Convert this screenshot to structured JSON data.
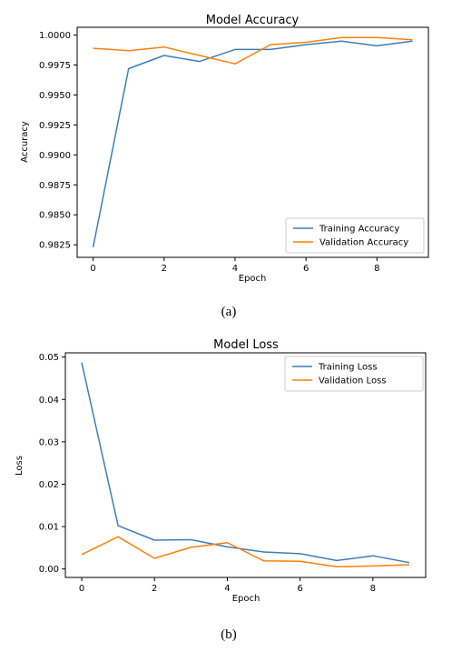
{
  "colors": {
    "training": "#3b7fb8",
    "validation": "#ff7f0e"
  },
  "chart_data": [
    {
      "type": "line",
      "title": "Model Accuracy",
      "xlabel": "Epoch",
      "ylabel": "Accuracy",
      "caption": "(a)",
      "x": [
        0,
        1,
        2,
        3,
        4,
        5,
        6,
        7,
        8,
        9
      ],
      "xlim": [
        -0.45,
        9.45
      ],
      "ylim": [
        0.98145,
        1.00065
      ],
      "xticks": [
        0,
        2,
        4,
        6,
        8
      ],
      "yticks": [
        0.9825,
        0.985,
        0.9875,
        0.99,
        0.9925,
        0.995,
        0.9975,
        1.0
      ],
      "ytick_labels": [
        "0.9825",
        "0.9850",
        "0.9875",
        "0.9900",
        "0.9925",
        "0.9950",
        "0.9975",
        "1.0000"
      ],
      "legend_position": "lower-right",
      "series": [
        {
          "name": "Training Accuracy",
          "values": [
            0.9823,
            0.9972,
            0.9983,
            0.9978,
            0.9988,
            0.9988,
            0.9992,
            0.9995,
            0.9991,
            0.9995
          ]
        },
        {
          "name": "Validation Accuracy",
          "values": [
            0.9989,
            0.9987,
            0.999,
            0.9983,
            0.9976,
            0.9992,
            0.9994,
            0.9998,
            0.9998,
            0.9996
          ]
        }
      ]
    },
    {
      "type": "line",
      "title": "Model Loss",
      "xlabel": "Epoch",
      "ylabel": "Loss",
      "caption": "(b)",
      "x": [
        0,
        1,
        2,
        3,
        4,
        5,
        6,
        7,
        8,
        9
      ],
      "xlim": [
        -0.45,
        9.45
      ],
      "ylim": [
        -0.002,
        0.051
      ],
      "xticks": [
        0,
        2,
        4,
        6,
        8
      ],
      "yticks": [
        0.0,
        0.01,
        0.02,
        0.03,
        0.04,
        0.05
      ],
      "ytick_labels": [
        "0.00",
        "0.01",
        "0.02",
        "0.03",
        "0.04",
        "0.05"
      ],
      "legend_position": "upper-right",
      "series": [
        {
          "name": "Training Loss",
          "values": [
            0.0487,
            0.0102,
            0.0068,
            0.0069,
            0.0052,
            0.004,
            0.0036,
            0.002,
            0.0031,
            0.0015
          ]
        },
        {
          "name": "Validation Loss",
          "values": [
            0.0034,
            0.0076,
            0.0025,
            0.0051,
            0.0062,
            0.0019,
            0.0018,
            0.0005,
            0.0007,
            0.001
          ]
        }
      ]
    }
  ]
}
